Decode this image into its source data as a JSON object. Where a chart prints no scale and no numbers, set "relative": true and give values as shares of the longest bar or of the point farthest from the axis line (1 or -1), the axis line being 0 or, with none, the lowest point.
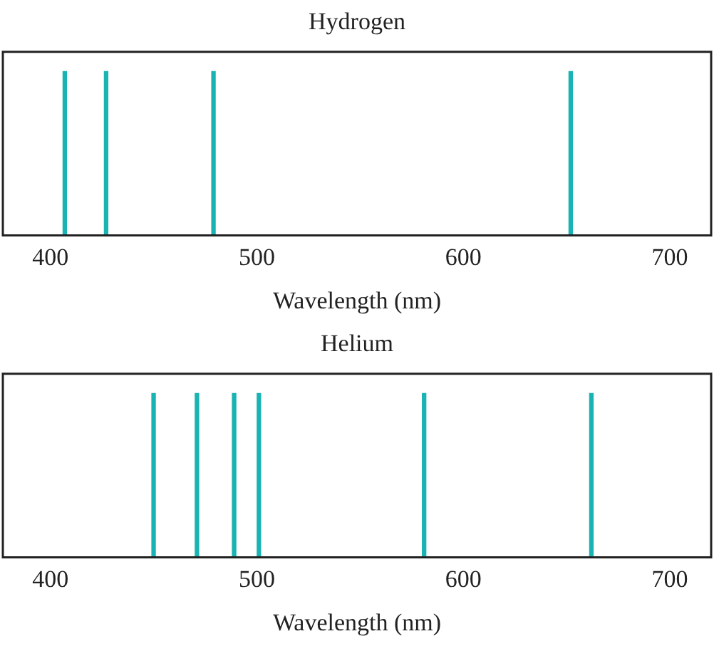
{
  "chart_data": [
    {
      "type": "bar",
      "title": "Hydrogen",
      "xlabel": "Wavelength (nm)",
      "x": [
        407,
        427,
        479,
        652
      ],
      "values": [
        1,
        1,
        1,
        1
      ],
      "color": "#1ab3b3",
      "relative": true,
      "xlim": [
        377,
        720
      ],
      "xticks": [
        400,
        500,
        600,
        700
      ],
      "grid": false
    },
    {
      "type": "bar",
      "title": "Helium",
      "xlabel": "Wavelength (nm)",
      "x": [
        450,
        471,
        489,
        501,
        581,
        662
      ],
      "values": [
        1,
        1,
        1,
        1,
        1,
        1
      ],
      "color": "#1ab3b3",
      "relative": true,
      "xlim": [
        377,
        720
      ],
      "xticks": [
        400,
        500,
        600,
        700
      ],
      "grid": false
    }
  ]
}
